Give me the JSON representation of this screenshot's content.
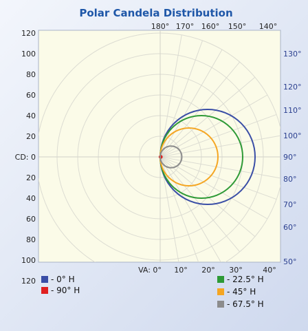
{
  "chart_data": {
    "type": "polar",
    "title": "Polar Candela Distribution",
    "cd_axis_label": "CD: 0",
    "cd_ticks_upper": [
      "120",
      "100",
      "80",
      "60",
      "40",
      "20"
    ],
    "cd_ticks_lower": [
      "20",
      "40",
      "60",
      "80",
      "100",
      "120"
    ],
    "cd_max": 120,
    "va_axis_label": "VA: 0°",
    "va_ticks_bottom": [
      "10°",
      "20°",
      "30°",
      "40°"
    ],
    "va_ticks_top": [
      "180°",
      "170°",
      "160°",
      "150°",
      "140°"
    ],
    "va_ticks_right": [
      "130°",
      "120°",
      "110°",
      "100°",
      "90°",
      "80°",
      "70°",
      "60°",
      "50°"
    ],
    "series": [
      {
        "name": "- 0° H",
        "color": "#3a4ea6",
        "peak_cd": 92,
        "peak_angle": 90
      },
      {
        "name": "- 90° H",
        "color": "#e02020",
        "peak_cd": 1,
        "peak_angle": 90
      },
      {
        "name": "- 22.5° H",
        "color": "#2e9a36",
        "peak_cd": 80,
        "peak_angle": 90
      },
      {
        "name": "- 45° H",
        "color": "#f5a623",
        "peak_cd": 56,
        "peak_angle": 90
      },
      {
        "name": "- 67.5° H",
        "color": "#8c8c8c",
        "peak_cd": 21,
        "peak_angle": 90
      }
    ]
  }
}
